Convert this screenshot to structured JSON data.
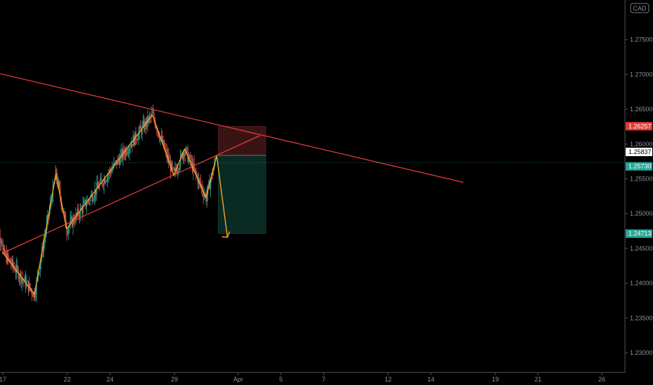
{
  "currency": "CAD",
  "colors": {
    "background": "#000000",
    "candle_up": "#26a69a",
    "candle_down": "#ef5350",
    "trendline": "#e03a3a",
    "pattern": "#f5a623",
    "stop_zone": "#3a1414",
    "target_zone": "#0a2a24",
    "tag_red": "#e53935",
    "tag_green": "#26a69a"
  },
  "chart_data": {
    "type": "candlestick",
    "symbol_currency": "CAD",
    "y_ticks": [
      "1.27500",
      "1.27000",
      "1.26500",
      "1.26000",
      "1.25500",
      "1.25000",
      "1.24500",
      "1.24000",
      "1.23500",
      "1.23000"
    ],
    "x_ticks": [
      "17",
      "22",
      "24",
      "29",
      "Apr",
      "5",
      "7",
      "12",
      "14",
      "19",
      "21",
      "26"
    ],
    "ylim": [
      1.2275,
      1.2795
    ],
    "price_tags": [
      {
        "value": "1.26257",
        "color": "red"
      },
      {
        "value": "1.25837",
        "color": "white"
      },
      {
        "value": "1.25730",
        "color": "green"
      },
      {
        "value": "1.24713",
        "color": "green"
      }
    ],
    "trendlines": [
      {
        "name": "descending-resistance",
        "from": [
          "Mar 15",
          1.2704
        ],
        "to": [
          "Apr 28",
          1.2545
        ]
      },
      {
        "name": "ascending-support",
        "from": [
          "Mar 16",
          1.2443
        ],
        "to": [
          "Apr 9",
          1.2612
        ]
      }
    ],
    "pattern_path": [
      [
        "Mar 16",
        1.2445
      ],
      [
        "Mar 19",
        1.2384
      ],
      [
        "Mar 21",
        1.2557
      ],
      [
        "Mar 22",
        1.2478
      ],
      [
        "Mar 30",
        1.2642
      ],
      [
        "Apr 1",
        1.2555
      ],
      [
        "Apr 2",
        1.2593
      ],
      [
        "Apr 4",
        1.2523
      ],
      [
        "Apr 5",
        1.2583
      ],
      [
        "Apr 6",
        1.2466
      ]
    ],
    "position": {
      "type": "short",
      "entry": 1.25837,
      "stop": 1.26257,
      "target": 1.24713,
      "start": "Apr 5",
      "end": "Apr 9"
    },
    "current_price": 1.2573
  }
}
